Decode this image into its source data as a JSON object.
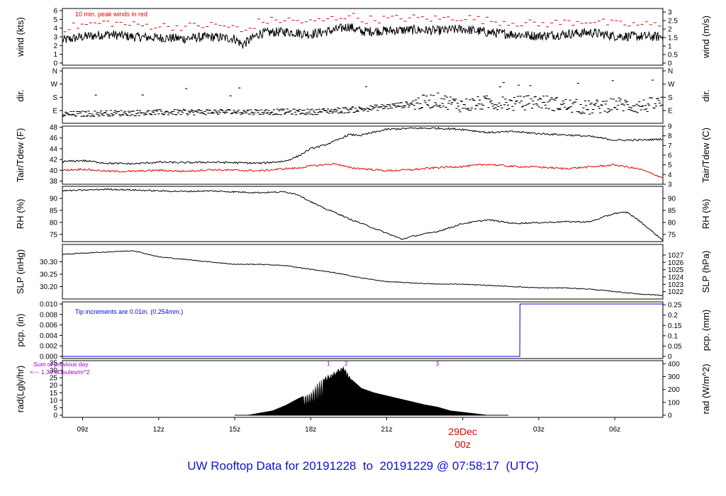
{
  "footer": {
    "prefix": "UW Rooftop Data for",
    "start": "20191228",
    "to": "to",
    "end": "20191229",
    "at": "@",
    "time": "07:58:17",
    "tz": "(UTC)"
  },
  "chart_data": [
    {
      "type": "line",
      "name": "wind",
      "ylabel_left": "wind (kts)",
      "ylabel_right": "wind (m/s)",
      "ylim": [
        0,
        6
      ],
      "yticks_left": [
        0,
        1,
        2,
        3,
        4,
        5,
        6
      ],
      "yticks_right": [
        0,
        0.5,
        1,
        1.5,
        2,
        2.5,
        3
      ],
      "annotation": "10 min. peak winds in red",
      "annotation_color": "#e00000",
      "line_color": "#000000",
      "anchors_x": [
        8.2,
        9,
        10,
        11,
        12,
        13,
        14,
        15,
        15.3,
        16,
        17,
        18,
        19,
        19.5,
        20,
        21,
        22,
        23,
        24,
        25,
        26,
        27,
        28,
        29,
        30,
        31.9
      ],
      "anchors_y": [
        2.6,
        3.0,
        3.3,
        3.0,
        2.9,
        2.8,
        3.0,
        2.8,
        2.1,
        3.4,
        3.6,
        3.3,
        3.8,
        4.2,
        3.6,
        3.7,
        3.8,
        3.7,
        3.9,
        3.5,
        3.3,
        3.1,
        3.3,
        3.5,
        3.1,
        3.0
      ],
      "noise": 0.55
    },
    {
      "type": "scatter",
      "name": "dir",
      "ylabel_left": "dir.",
      "ylabel_right": "dir.",
      "yticks": [
        "E",
        "S",
        "W",
        "N"
      ],
      "yticks_extra_left": [
        ""
      ],
      "line_color": "#000000",
      "anchors_x": [
        8.2,
        10,
        12,
        14,
        16,
        18,
        19,
        20,
        21,
        22,
        23,
        24,
        25,
        26,
        27,
        28,
        29,
        30,
        31,
        31.9
      ],
      "anchors_y": [
        0.7,
        0.8,
        0.85,
        0.9,
        0.9,
        0.9,
        1.0,
        1.1,
        1.3,
        1.5,
        1.8,
        1.4,
        1.6,
        1.5,
        1.7,
        1.4,
        1.2,
        1.5,
        1.3,
        1.6
      ]
    },
    {
      "type": "line",
      "name": "temp",
      "ylabel_left": "Tair/Tdew (F)",
      "ylabel_right": "Tair/Tdew (C)",
      "ylim": [
        37.4,
        48.2
      ],
      "yticks_left": [
        38,
        40,
        42,
        44,
        46,
        48
      ],
      "yticks_right": [
        3,
        4,
        5,
        6,
        7,
        8,
        9
      ],
      "series": [
        {
          "name": "Tair",
          "color": "#000000",
          "anchors_x": [
            8.2,
            9,
            10,
            11,
            12,
            13,
            14,
            15,
            16,
            17,
            17.5,
            18,
            18.5,
            19,
            19.5,
            20,
            21,
            22,
            23,
            24,
            25,
            26,
            27,
            28,
            29,
            30,
            31,
            31.9
          ],
          "anchors_y": [
            41.6,
            41.8,
            41.3,
            41.2,
            41.5,
            41.4,
            41.5,
            41.4,
            41.3,
            41.7,
            42.6,
            44.0,
            44.6,
            45.5,
            46.6,
            46.5,
            47.6,
            47.8,
            47.8,
            47.6,
            47.0,
            47.2,
            46.8,
            46.6,
            46.3,
            45.6,
            45.6,
            45.8
          ]
        },
        {
          "name": "Tdew",
          "color": "#e00000",
          "anchors_x": [
            8.2,
            9,
            10,
            11,
            12,
            13,
            14,
            15,
            16,
            17,
            17.5,
            18,
            18.5,
            19,
            19.5,
            20,
            21,
            22,
            23,
            24,
            25,
            26,
            27,
            28,
            29,
            30,
            31,
            31.9
          ],
          "anchors_y": [
            40.0,
            40.2,
            39.8,
            39.8,
            40.0,
            39.8,
            40.1,
            40.0,
            39.9,
            40.3,
            40.4,
            40.8,
            41.0,
            41.2,
            40.5,
            40.3,
            39.9,
            40.1,
            40.5,
            40.7,
            41.1,
            40.7,
            40.6,
            40.3,
            40.6,
            41.0,
            40.2,
            38.6
          ]
        }
      ]
    },
    {
      "type": "line",
      "name": "rh",
      "ylabel_left": "RH (%)",
      "ylabel_right": "RH (%)",
      "ylim": [
        72,
        95
      ],
      "yticks_left": [
        75,
        80,
        85,
        90
      ],
      "yticks_right": [
        75,
        80,
        85,
        90
      ],
      "line_color": "#000000",
      "anchors_x": [
        8.2,
        9,
        10,
        11,
        12,
        13,
        14,
        15,
        16,
        17,
        17.5,
        18,
        18.5,
        19,
        19.5,
        20,
        21,
        21.6,
        22,
        23,
        24,
        25,
        26,
        27,
        28,
        29,
        30,
        30.5,
        31,
        31.9
      ],
      "anchors_y": [
        93.2,
        93.4,
        93.8,
        93.5,
        93.1,
        92.9,
        93.1,
        92.7,
        92.4,
        92.7,
        91.6,
        88.6,
        86.0,
        84.0,
        81.5,
        79.6,
        75.5,
        73.0,
        74.2,
        76.2,
        79.5,
        81.1,
        79.6,
        79.9,
        80.3,
        80.2,
        83.8,
        84.2,
        80.4,
        72.5
      ]
    },
    {
      "type": "line",
      "name": "slp",
      "ylabel_left": "SLP (inHg)",
      "ylabel_right": "SLP (hPa)",
      "ylim": [
        30.15,
        30.37
      ],
      "yticks_left": [
        30.2,
        30.25,
        30.3
      ],
      "yticks_right": [
        1022,
        1023,
        1024,
        1025,
        1026,
        1027
      ],
      "line_color": "#000000",
      "anchors_x": [
        8.2,
        9,
        10,
        11,
        12,
        13,
        14,
        15,
        16,
        17,
        18,
        19,
        19.5,
        20,
        21,
        22,
        23,
        24,
        25,
        26,
        27,
        28,
        29,
        30,
        31,
        31.9
      ],
      "anchors_y": [
        30.33,
        30.335,
        30.34,
        30.345,
        30.32,
        30.31,
        30.3,
        30.29,
        30.29,
        30.285,
        30.27,
        30.255,
        30.245,
        30.235,
        30.22,
        30.215,
        30.21,
        30.21,
        30.205,
        30.2,
        30.195,
        30.195,
        30.19,
        30.18,
        30.17,
        30.165
      ]
    },
    {
      "type": "line",
      "name": "pcp",
      "ylabel_left": "pcp. (in)",
      "ylabel_right": "pcp. (mm)",
      "ylim": [
        0,
        0.01
      ],
      "yticks_left": [
        "0.000",
        "0.002",
        "0.004",
        "0.006",
        "0.008",
        "0.010"
      ],
      "yticks_right": [
        "0",
        "0.05",
        "0.1",
        "0.15",
        "0.2",
        "0.25"
      ],
      "annotation": "Tip increments are 0.01in. (0.254mm.)",
      "annotation_color": "#0000e0",
      "line_color": "#0000e0",
      "x": [
        8.2,
        26.25,
        26.26,
        31.9
      ],
      "y": [
        0,
        0,
        0.01,
        0.01
      ]
    },
    {
      "type": "area",
      "name": "rad",
      "ylabel_left": "rad(Lgly/hr)",
      "ylabel_right": "rad (W/m^2)",
      "ylim": [
        0,
        35
      ],
      "yticks_left": [
        0,
        5,
        10,
        15,
        20,
        25,
        30,
        35
      ],
      "yticks_right": [
        0,
        100,
        200,
        300,
        400
      ],
      "annotation_lines": [
        "Sum of previous day",
        "<--- 1.30 MJoules/m^2"
      ],
      "annotation_color": "#9400d3",
      "hour_markers": [
        {
          "label": "1",
          "x": 18.7
        },
        {
          "label": "2",
          "x": 19.4
        },
        {
          "label": "3",
          "x": 23.0
        }
      ],
      "color": "#000000",
      "envelope_x": [
        15.5,
        16.0,
        16.5,
        17.0,
        17.5,
        18.0,
        18.3,
        18.6,
        19.0,
        19.3,
        19.6,
        20.0,
        20.5,
        21.0,
        21.5,
        22.0,
        22.5,
        23.0,
        23.5,
        24.0,
        24.5,
        25.0
      ],
      "envelope_y": [
        0,
        1.5,
        3,
        6.5,
        11,
        15,
        22,
        26,
        30,
        33,
        24,
        18,
        15,
        13,
        11,
        9,
        7,
        5.5,
        3,
        2,
        1,
        0
      ]
    }
  ],
  "x_axis": {
    "ticks": [
      {
        "x": 9,
        "label": "09z"
      },
      {
        "x": 12,
        "label": "12z"
      },
      {
        "x": 15,
        "label": "15z"
      },
      {
        "x": 18,
        "label": "18z"
      },
      {
        "x": 21,
        "label": "21z"
      },
      {
        "x": 24,
        "label": "",
        "major": true
      },
      {
        "x": 27,
        "label": "03z"
      },
      {
        "x": 30,
        "label": "06z"
      }
    ],
    "major_label_line1": "29Dec",
    "major_label_line2": "00z",
    "major_label_color": "#e00000",
    "xlim": [
      8.2,
      31.9
    ]
  }
}
